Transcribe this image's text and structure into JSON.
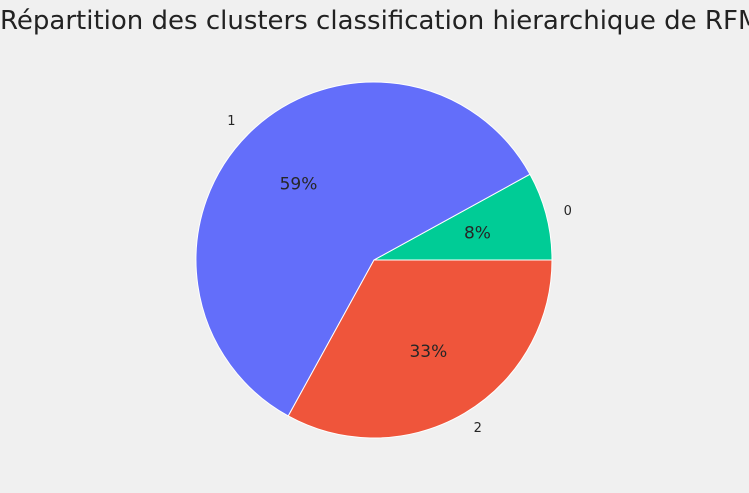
{
  "chart_data": {
    "type": "pie",
    "title": "Répartition des clusters classification hierarchique de RFM",
    "categories": [
      "0",
      "1",
      "2"
    ],
    "values": [
      8,
      59,
      33
    ],
    "percent_labels": [
      "8%",
      "59%",
      "33%"
    ],
    "colors": [
      "#00cc96",
      "#636efa",
      "#ef553b"
    ],
    "start_angle_deg": 0,
    "direction": "counterclockwise",
    "legend": "none"
  }
}
